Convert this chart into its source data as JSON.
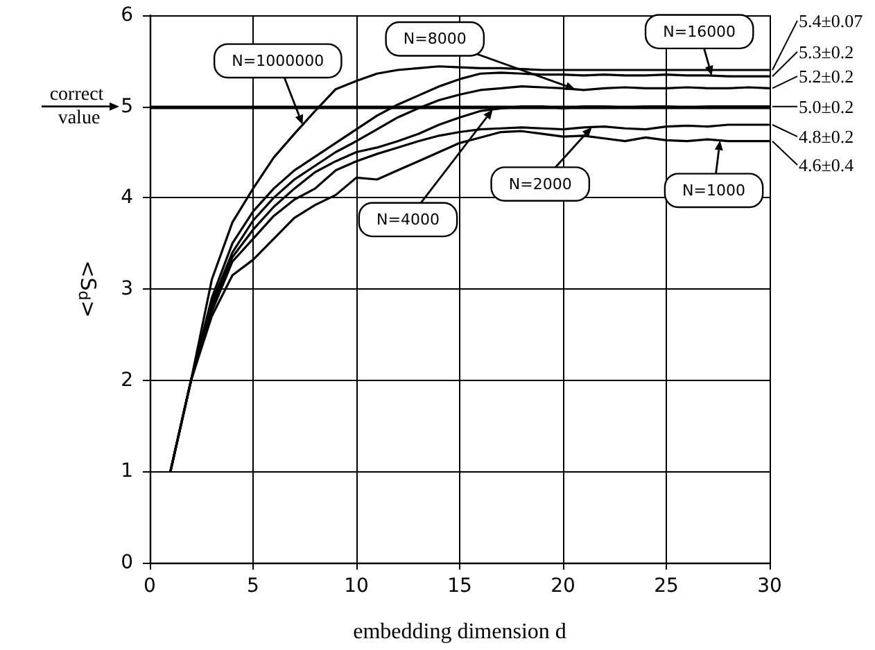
{
  "chart_data": {
    "type": "line",
    "xlabel": "embedding dimension d",
    "ylabel": "<S$_{d}$>",
    "x": [
      1,
      2,
      3,
      4,
      5,
      6,
      7,
      8,
      9,
      10,
      11,
      12,
      13,
      14,
      15,
      16,
      17,
      18,
      19,
      20,
      21,
      22,
      23,
      24,
      25,
      26,
      27,
      28,
      29,
      30
    ],
    "series": [
      {
        "name": "N=1000000",
        "color": "#000000",
        "values": [
          1,
          2,
          3.1,
          3.73,
          4.1,
          4.44,
          4.7,
          4.95,
          5.19,
          5.28,
          5.36,
          5.4,
          5.42,
          5.44,
          5.43,
          5.42,
          5.42,
          5.41,
          5.4,
          5.4,
          5.4,
          5.4,
          5.4,
          5.4,
          5.4,
          5.4,
          5.4,
          5.4,
          5.4,
          5.4
        ]
      },
      {
        "name": "N=16000",
        "color": "#000000",
        "values": [
          1,
          2,
          2.9,
          3.5,
          3.85,
          4.1,
          4.3,
          4.45,
          4.6,
          4.75,
          4.9,
          5.02,
          5.12,
          5.22,
          5.3,
          5.36,
          5.37,
          5.36,
          5.35,
          5.35,
          5.34,
          5.35,
          5.34,
          5.34,
          5.35,
          5.34,
          5.34,
          5.33,
          5.33,
          5.33
        ]
      },
      {
        "name": "N=8000",
        "color": "#000000",
        "values": [
          1,
          2,
          2.85,
          3.4,
          3.75,
          4.0,
          4.2,
          4.35,
          4.5,
          4.62,
          4.75,
          4.88,
          4.98,
          5.07,
          5.13,
          5.18,
          5.2,
          5.22,
          5.21,
          5.2,
          5.18,
          5.2,
          5.21,
          5.2,
          5.2,
          5.21,
          5.2,
          5.2,
          5.21,
          5.2
        ]
      },
      {
        "name": "N=4000",
        "color": "#000000",
        "values": [
          1,
          2,
          2.8,
          3.35,
          3.65,
          3.9,
          4.1,
          4.28,
          4.4,
          4.5,
          4.55,
          4.62,
          4.7,
          4.8,
          4.88,
          4.95,
          4.98,
          5.0,
          5.0,
          4.98,
          5.0,
          5.0,
          4.99,
          5.0,
          5.0,
          4.99,
          5.0,
          5.0,
          5.0,
          5.0
        ]
      },
      {
        "name": "N=2000",
        "color": "#000000",
        "values": [
          1,
          2,
          2.75,
          3.3,
          3.55,
          3.8,
          3.98,
          4.1,
          4.3,
          4.4,
          4.48,
          4.55,
          4.62,
          4.68,
          4.72,
          4.75,
          4.76,
          4.77,
          4.76,
          4.75,
          4.77,
          4.78,
          4.76,
          4.75,
          4.78,
          4.79,
          4.78,
          4.8,
          4.8,
          4.8
        ]
      },
      {
        "name": "N=1000",
        "color": "#000000",
        "values": [
          1,
          2,
          2.7,
          3.15,
          3.32,
          3.55,
          3.78,
          3.92,
          4.03,
          4.22,
          4.2,
          4.3,
          4.4,
          4.5,
          4.6,
          4.66,
          4.72,
          4.73,
          4.7,
          4.67,
          4.68,
          4.65,
          4.62,
          4.66,
          4.63,
          4.62,
          4.64,
          4.62,
          4.62,
          4.62
        ]
      }
    ],
    "annotations": [
      "5.4±0.07",
      "5.3±0.2",
      "5.2±0.2",
      "5.0±0.2",
      "4.8±0.2",
      "4.6±0.4"
    ],
    "ref_lines": [
      {
        "axis": "y",
        "value": 5,
        "label": "correct value",
        "color": "#000000"
      }
    ],
    "xlim": [
      0,
      30
    ],
    "xticks": [
      0,
      5,
      10,
      15,
      20,
      25,
      30
    ],
    "ylim": [
      0,
      6
    ],
    "yticks": [
      0,
      1,
      2,
      3,
      4,
      5,
      6
    ],
    "grid": true,
    "legend": false,
    "marker": "none",
    "line_style": "solid"
  }
}
